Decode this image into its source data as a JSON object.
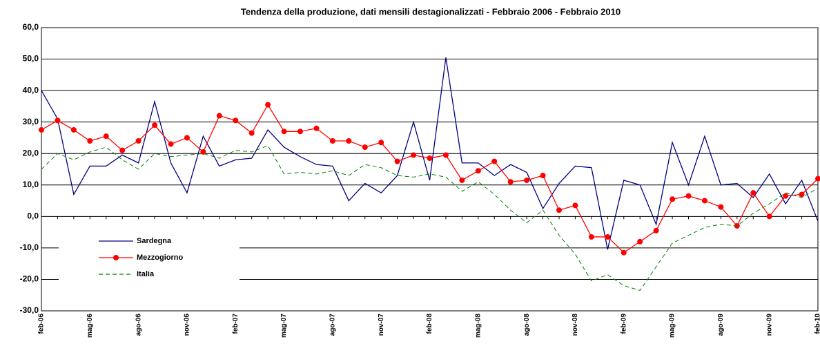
{
  "chart_data": {
    "type": "line",
    "title": "Tendenza della produzione, dati mensili destagionalizzati - Febbraio 2006 - Febbraio 2010",
    "categories": [
      "feb-06",
      null,
      null,
      "mag-06",
      null,
      null,
      "ago-06",
      null,
      null,
      "nov-06",
      null,
      null,
      "feb-07",
      null,
      null,
      "mag-07",
      null,
      null,
      "ago-07",
      null,
      null,
      "nov-07",
      null,
      null,
      "feb-08",
      null,
      null,
      "mag-08",
      null,
      null,
      "ago-08",
      null,
      null,
      "nov-08",
      null,
      null,
      "feb-09",
      null,
      null,
      "mag-09",
      null,
      null,
      "ago-09",
      null,
      null,
      "nov-09",
      null,
      null,
      "feb-10"
    ],
    "series": [
      {
        "name": "Sardegna",
        "color": "#000080",
        "style": "solid",
        "marker": "none",
        "values": [
          40,
          31,
          7,
          16,
          16,
          19.5,
          17,
          36.5,
          17,
          7.5,
          25.5,
          16,
          18,
          18.5,
          27.5,
          22,
          19,
          16.5,
          16,
          5,
          10.5,
          7.5,
          13,
          30,
          11.5,
          50.5,
          17,
          17,
          13,
          16.5,
          14,
          2.5,
          10.5,
          16,
          15.5,
          -10.5,
          11.5,
          10,
          -2.5,
          23.5,
          10,
          25.5,
          10,
          10.5,
          6,
          13.5,
          4,
          11.5,
          -1.5
        ]
      },
      {
        "name": "Mezzogiorno",
        "color": "#ff0000",
        "style": "solid",
        "marker": "circle",
        "values": [
          27.5,
          30.5,
          27.5,
          24,
          25.5,
          21,
          24,
          29,
          23,
          25,
          20.5,
          32,
          30.5,
          26.5,
          35.5,
          27,
          27,
          28,
          24,
          24,
          22,
          23.5,
          17.5,
          19.5,
          18.5,
          19.5,
          11.5,
          14.5,
          17.5,
          11,
          11.5,
          13,
          2,
          3.5,
          -6.5,
          -6.5,
          -11.5,
          -8,
          -4.5,
          5.5,
          6.5,
          5,
          3,
          -3,
          7.5,
          0,
          6.5,
          7,
          12
        ]
      },
      {
        "name": "Italia",
        "color": "#008000",
        "style": "dashed",
        "marker": "none",
        "values": [
          15,
          20,
          18,
          20.5,
          22,
          18,
          15,
          20,
          19,
          19.5,
          20,
          18.5,
          21,
          20.5,
          22.5,
          13.5,
          14,
          13.5,
          14.5,
          13,
          16.5,
          15.5,
          13,
          12.5,
          13.5,
          12.5,
          8,
          11,
          7,
          2,
          -2,
          2,
          -6,
          -12,
          -20.5,
          -18.5,
          -22,
          -23.5,
          -16,
          -8.5,
          -6,
          -3.5,
          -2.5,
          -3,
          1,
          4,
          7.5,
          6,
          9
        ]
      }
    ],
    "ylim": [
      -30,
      60
    ],
    "yticks": [
      {
        "value": -30,
        "label": "-30,0"
      },
      {
        "value": -20,
        "label": "-20,0"
      },
      {
        "value": -10,
        "label": "-10,0"
      },
      {
        "value": 0,
        "label": "0,0"
      },
      {
        "value": 10,
        "label": "10,0"
      },
      {
        "value": 20,
        "label": "20,0"
      },
      {
        "value": 30,
        "label": "30,0"
      },
      {
        "value": 40,
        "label": "40,0"
      },
      {
        "value": 50,
        "label": "50,0"
      },
      {
        "value": 60,
        "label": "60,0"
      }
    ],
    "grid": true
  }
}
